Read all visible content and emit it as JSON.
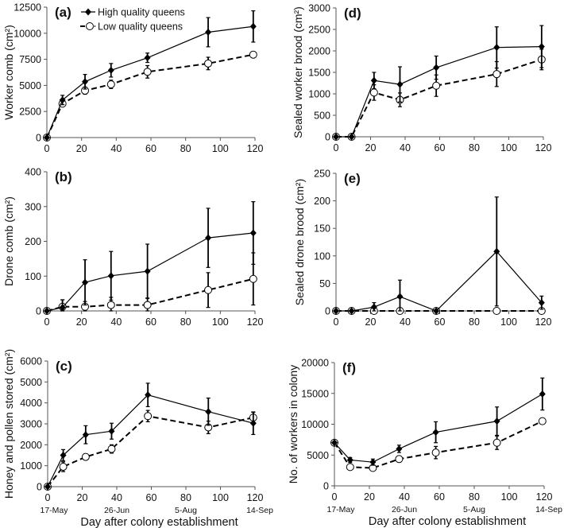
{
  "chart_data": [
    {
      "type": "line",
      "panel_label": "(a)",
      "ylabel": "Worker comb (cm²)",
      "ylim": [
        0,
        12500
      ],
      "yticks": [
        0,
        2500,
        5000,
        7500,
        10000,
        12500
      ],
      "xlim": [
        0,
        120
      ],
      "xticks": [
        0,
        20,
        40,
        60,
        80,
        100,
        120
      ],
      "x": [
        0,
        9,
        22,
        37,
        58,
        93,
        119
      ],
      "series": [
        {
          "name": "High quality queens",
          "marker": "filled",
          "line": "solid",
          "values": [
            0,
            3600,
            5350,
            6450,
            7650,
            10100,
            10650
          ],
          "errors": [
            0,
            450,
            700,
            650,
            450,
            1400,
            1500
          ]
        },
        {
          "name": "Low quality queens",
          "marker": "open",
          "line": "dashed",
          "values": [
            0,
            3250,
            4500,
            5100,
            6300,
            7100,
            7950
          ],
          "errors": [
            0,
            150,
            350,
            400,
            600,
            600,
            150
          ]
        }
      ],
      "legend": "top-left"
    },
    {
      "type": "line",
      "panel_label": "(b)",
      "ylabel": "Drone comb (cm²)",
      "ylim": [
        0,
        400
      ],
      "yticks": [
        0,
        100,
        200,
        300,
        400
      ],
      "xlim": [
        0,
        120
      ],
      "xticks": [
        0,
        20,
        40,
        60,
        80,
        100,
        120
      ],
      "x": [
        0,
        9,
        22,
        37,
        58,
        93,
        119
      ],
      "series": [
        {
          "values": [
            0,
            10,
            82,
            101,
            114,
            210,
            224
          ],
          "errors": [
            0,
            22,
            65,
            70,
            78,
            85,
            90
          ]
        },
        {
          "values": [
            0,
            12,
            12,
            17,
            17,
            60,
            92
          ],
          "errors": [
            0,
            20,
            15,
            22,
            20,
            50,
            75
          ]
        }
      ]
    },
    {
      "type": "line",
      "panel_label": "(c)",
      "ylabel": "Honey and pollen stored (cm²)",
      "ylim": [
        0,
        6000
      ],
      "yticks": [
        0,
        1000,
        2000,
        3000,
        4000,
        5000,
        6000
      ],
      "xlim": [
        0,
        120
      ],
      "xticks": [
        0,
        20,
        40,
        60,
        80,
        100,
        120
      ],
      "x": [
        0,
        9,
        22,
        37,
        58,
        93,
        119
      ],
      "series": [
        {
          "values": [
            0,
            1500,
            2480,
            2650,
            4380,
            3580,
            3030
          ],
          "errors": [
            0,
            270,
            430,
            380,
            560,
            650,
            540
          ]
        },
        {
          "values": [
            0,
            950,
            1420,
            1800,
            3370,
            2830,
            3300
          ],
          "errors": [
            0,
            230,
            150,
            200,
            270,
            300,
            250
          ]
        }
      ],
      "date_labels": [
        "17-May",
        "26-Jun",
        "5-Aug",
        "14-Sep"
      ],
      "xlabel": "Day after colony establishment"
    },
    {
      "type": "line",
      "panel_label": "(d)",
      "ylabel": "Sealed worker brood (cm²)",
      "ylim": [
        0,
        3000
      ],
      "yticks": [
        0,
        500,
        1000,
        1500,
        2000,
        2500,
        3000
      ],
      "xlim": [
        0,
        120
      ],
      "xticks": [
        0,
        20,
        40,
        60,
        80,
        100,
        120
      ],
      "x": [
        0,
        9,
        22,
        37,
        58,
        93,
        119
      ],
      "series": [
        {
          "values": [
            0,
            0,
            1310,
            1220,
            1610,
            2080,
            2100
          ],
          "errors": [
            0,
            0,
            190,
            410,
            270,
            480,
            490
          ]
        },
        {
          "values": [
            0,
            0,
            1030,
            860,
            1190,
            1460,
            1800
          ],
          "errors": [
            0,
            0,
            180,
            160,
            250,
            290,
            240
          ]
        }
      ]
    },
    {
      "type": "line",
      "panel_label": "(e)",
      "ylabel": "Sealed drone brood (cm²)",
      "ylim": [
        0,
        250
      ],
      "yticks": [
        0,
        50,
        100,
        150,
        200,
        250
      ],
      "xlim": [
        0,
        120
      ],
      "xticks": [
        0,
        20,
        40,
        60,
        80,
        100,
        120
      ],
      "x": [
        0,
        9,
        22,
        37,
        58,
        93,
        119
      ],
      "series": [
        {
          "values": [
            0,
            0,
            7,
            26,
            0,
            108,
            15
          ],
          "errors": [
            0,
            0,
            8,
            30,
            0,
            99,
            12
          ]
        },
        {
          "values": [
            0,
            0,
            0,
            0,
            0,
            0,
            0
          ],
          "errors": [
            0,
            0,
            0,
            0,
            0,
            0,
            0
          ]
        }
      ]
    },
    {
      "type": "line",
      "panel_label": "(f)",
      "ylabel": "No. of workers in colony",
      "ylim": [
        0,
        20000
      ],
      "yticks": [
        0,
        5000,
        10000,
        15000,
        20000
      ],
      "xlim": [
        0,
        120
      ],
      "xticks": [
        0,
        20,
        40,
        60,
        80,
        100,
        120
      ],
      "x": [
        0,
        9,
        22,
        37,
        58,
        93,
        119
      ],
      "series": [
        {
          "values": [
            7000,
            4200,
            3850,
            6000,
            8700,
            10500,
            14900
          ],
          "errors": [
            0,
            400,
            500,
            600,
            1700,
            2300,
            2600
          ]
        },
        {
          "values": [
            7000,
            3050,
            2900,
            4350,
            5400,
            7000,
            10500
          ],
          "errors": [
            0,
            300,
            200,
            300,
            1000,
            1100,
            500
          ]
        }
      ],
      "date_labels": [
        "17-May",
        "26-Jun",
        "5-Aug",
        "14-Sep"
      ],
      "xlabel": "Day after colony establishment"
    }
  ]
}
